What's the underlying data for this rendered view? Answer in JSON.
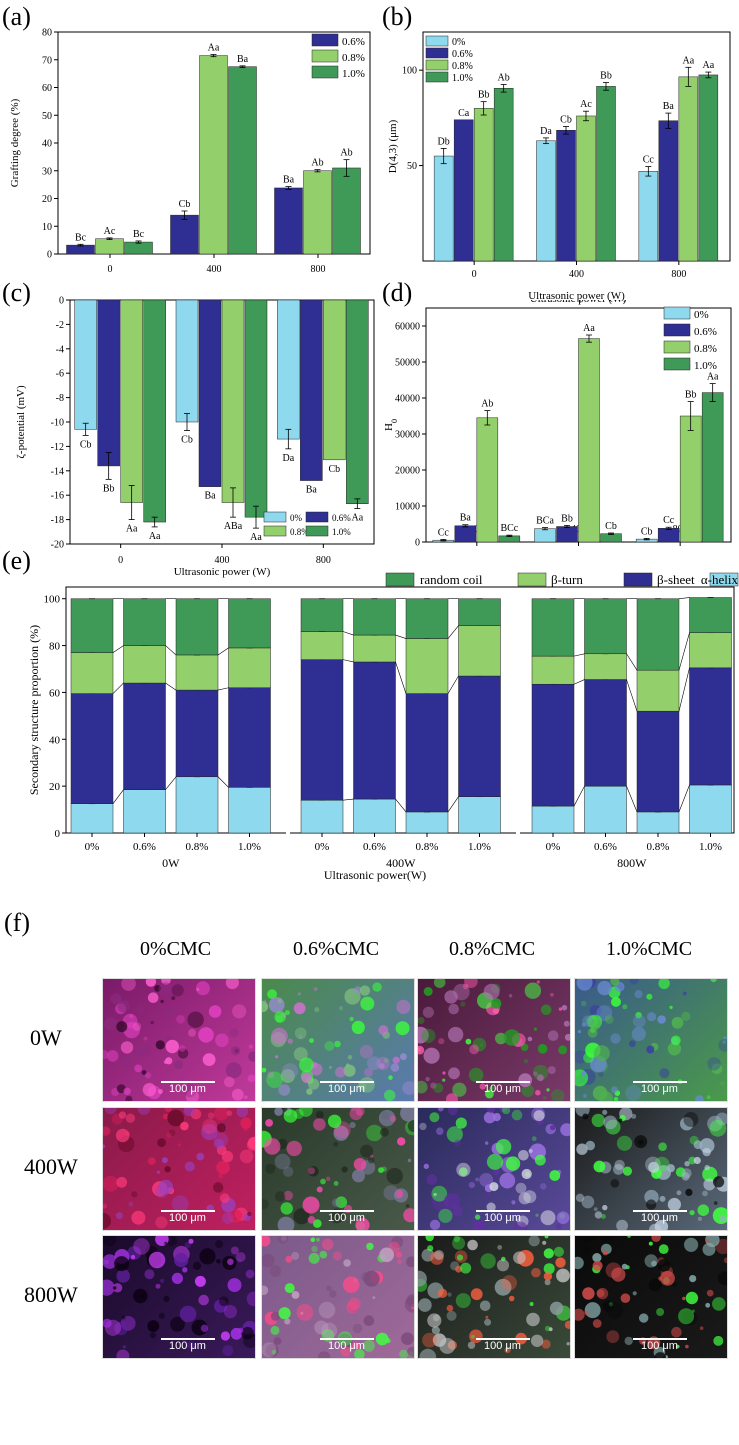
{
  "panels": {
    "a": "(a)",
    "b": "(b)",
    "c": "(c)",
    "d": "(d)",
    "e": "(e)",
    "f": "(f)"
  },
  "colors": {
    "c0": "#8fd9ef",
    "c06": "#2e2e93",
    "c08": "#93d06b",
    "c10": "#3e9a56"
  },
  "chart_data": [
    {
      "id": "a",
      "type": "bar",
      "ylabel": "Grafting degree (%)",
      "xlabel": "",
      "categories": [
        "0",
        "400",
        "800"
      ],
      "ylim": [
        0,
        80
      ],
      "yticks": [
        0,
        10,
        20,
        30,
        40,
        50,
        60,
        70,
        80
      ],
      "legend": "top-right",
      "series": [
        {
          "name": "0.6%",
          "color": "#2e2e93",
          "values": [
            3.2,
            14.0,
            23.8
          ],
          "errors": [
            0.3,
            1.5,
            0.5
          ],
          "labels": [
            "Bc",
            "Cb",
            "Ba"
          ]
        },
        {
          "name": "0.8%",
          "color": "#93d06b",
          "values": [
            5.5,
            71.5,
            30.0
          ],
          "errors": [
            0.3,
            0.4,
            0.4
          ],
          "labels": [
            "Ac",
            "Aa",
            "Ab"
          ]
        },
        {
          "name": "1.0%",
          "color": "#3e9a56",
          "values": [
            4.3,
            67.5,
            31.0
          ],
          "errors": [
            0.4,
            0.3,
            3.0
          ],
          "labels": [
            "Bc",
            "Ba",
            "Ab"
          ]
        }
      ]
    },
    {
      "id": "b",
      "type": "bar",
      "ylabel": "D(4,3) (μm)",
      "xlabel": "Ultrasonic power (W)",
      "categories": [
        "0",
        "400",
        "800"
      ],
      "ylim": [
        0,
        120
      ],
      "yticks": [
        50,
        100
      ],
      "legend": "top-left",
      "series": [
        {
          "name": "0%",
          "color": "#8fd9ef",
          "values": [
            55,
            63,
            47
          ],
          "errors": [
            4,
            1.5,
            2.5
          ],
          "labels": [
            "Db",
            "Da",
            "Cc"
          ]
        },
        {
          "name": "0.6%",
          "color": "#2e2e93",
          "values": [
            74,
            68.5,
            73.5
          ],
          "errors": [
            0,
            2,
            4
          ],
          "labels": [
            "Ca",
            "Cb",
            "Ba"
          ]
        },
        {
          "name": "0.8%",
          "color": "#93d06b",
          "values": [
            80,
            76,
            96.5
          ],
          "errors": [
            3.5,
            2.5,
            5
          ],
          "labels": [
            "Bb",
            "Ac",
            "Aa"
          ]
        },
        {
          "name": "1.0%",
          "color": "#3e9a56",
          "values": [
            90.5,
            91.5,
            97.5
          ],
          "errors": [
            2,
            2,
            1.5
          ],
          "labels": [
            "Ab",
            "Bb",
            "Aa"
          ]
        }
      ]
    },
    {
      "id": "c",
      "type": "bar",
      "ylabel": "ζ-potential (mV)",
      "xlabel": "Ultrasonic power (W)",
      "categories": [
        "0",
        "400",
        "800"
      ],
      "ylim": [
        -20,
        0
      ],
      "yticks": [
        -20,
        -18,
        -16,
        -14,
        -12,
        -10,
        -8,
        -6,
        -4,
        -2,
        0
      ],
      "legend": "bottom-right",
      "series": [
        {
          "name": "0%",
          "color": "#8fd9ef",
          "values": [
            -10.6,
            -10.0,
            -11.4
          ],
          "errors": [
            0.5,
            0.7,
            0.8
          ],
          "labels": [
            "Cb",
            "Cb",
            "Da"
          ]
        },
        {
          "name": "0.6%",
          "color": "#2e2e93",
          "values": [
            -13.6,
            -15.3,
            -14.8
          ],
          "errors": [
            1.1,
            0,
            0
          ],
          "labels": [
            "Bb",
            "Ba",
            "Ba"
          ]
        },
        {
          "name": "0.8%",
          "color": "#93d06b",
          "values": [
            -16.6,
            -16.6,
            -13.1
          ],
          "errors": [
            1.4,
            1.2,
            0
          ],
          "labels": [
            "Aa",
            "ABa",
            "Cb"
          ]
        },
        {
          "name": "1.0%",
          "color": "#3e9a56",
          "values": [
            -18.2,
            -17.8,
            -16.7
          ],
          "errors": [
            0.4,
            0.9,
            0.4
          ],
          "labels": [
            "Aa",
            "Aa",
            "Aa"
          ]
        }
      ]
    },
    {
      "id": "d",
      "type": "bar",
      "ylabel": "H0",
      "xlabel": "Ultrasonic power (W)",
      "categories": [
        "0",
        "400",
        "800"
      ],
      "ylim": [
        0,
        65000
      ],
      "yticks": [
        0,
        10000,
        20000,
        30000,
        40000,
        50000,
        60000
      ],
      "legend": "top-right",
      "series": [
        {
          "name": "0%",
          "color": "#8fd9ef",
          "values": [
            500,
            3700,
            800
          ],
          "errors": [
            200,
            300,
            200
          ],
          "labels": [
            "Cc",
            "BCa",
            "Cb"
          ]
        },
        {
          "name": "0.6%",
          "color": "#2e2e93",
          "values": [
            4500,
            4300,
            3800
          ],
          "errors": [
            300,
            300,
            300
          ],
          "labels": [
            "Ba",
            "Bb",
            "Cc"
          ]
        },
        {
          "name": "0.8%",
          "color": "#93d06b",
          "values": [
            34500,
            56500,
            35000
          ],
          "errors": [
            2000,
            1000,
            4000
          ],
          "labels": [
            "Ab",
            "Aa",
            "Bb"
          ]
        },
        {
          "name": "1.0%",
          "color": "#3e9a56",
          "values": [
            1700,
            2300,
            41500
          ],
          "errors": [
            200,
            200,
            2500
          ],
          "labels": [
            "BCc",
            "Cb",
            "Aa"
          ]
        }
      ]
    },
    {
      "id": "e",
      "type": "bar",
      "stacked": true,
      "ylabel": "Secondary structure proportion (%)",
      "xlabel": "Ultrasonic power(W)",
      "group_labels": [
        "0W",
        "400W",
        "800W"
      ],
      "categories": [
        "0%",
        "0.6%",
        "0.8%",
        "1.0%"
      ],
      "ylim": [
        0,
        105
      ],
      "yticks": [
        0,
        20,
        40,
        60,
        80,
        100
      ],
      "legend": "top",
      "legend_order": [
        "random coil",
        "β-turn",
        "β-sheet",
        "α-helix"
      ],
      "series": [
        {
          "name": "α-helix",
          "color": "#8fd9ef",
          "values": [
            [
              12.5,
              18.5,
              24,
              19.5
            ],
            [
              14,
              14.5,
              9,
              15.5
            ],
            [
              11.5,
              20,
              9,
              20.5
            ]
          ]
        },
        {
          "name": "β-sheet",
          "color": "#2e2e93",
          "values": [
            [
              47,
              45.5,
              37,
              42.5
            ],
            [
              60,
              58.5,
              50.5,
              51.5
            ],
            [
              52,
              45.5,
              43,
              50
            ]
          ]
        },
        {
          "name": "β-turn",
          "color": "#93d06b",
          "values": [
            [
              17.5,
              16,
              15,
              17
            ],
            [
              12,
              11.5,
              23.5,
              21.5
            ],
            [
              12,
              11,
              17.5,
              15
            ]
          ]
        },
        {
          "name": "random coil",
          "color": "#3e9a56",
          "values": [
            [
              23,
              20,
              24,
              21
            ],
            [
              14,
              15.5,
              17,
              11.5
            ],
            [
              24.5,
              23.5,
              30.5,
              15
            ]
          ]
        }
      ]
    }
  ],
  "micrographs": {
    "columns": [
      "0%CMC",
      "0.6%CMC",
      "0.8%CMC",
      "1.0%CMC"
    ],
    "rows": [
      "0W",
      "400W",
      "800W"
    ],
    "scalebar": "100 μm"
  }
}
